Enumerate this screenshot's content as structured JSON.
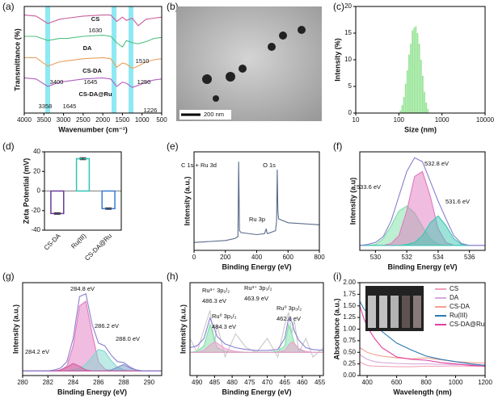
{
  "chart_data": [
    {
      "type": "line",
      "panel_label": "(a)",
      "xlabel": "Wavenumber (cm⁻¹)",
      "ylabel": "Transmittance (%)",
      "xlim": [
        4000,
        500
      ],
      "xticks": [
        4000,
        3500,
        3000,
        2500,
        2000,
        1500,
        1000,
        500
      ],
      "ylim": [
        0,
        100
      ],
      "x": [
        4000,
        3700,
        3400,
        3100,
        2900,
        2500,
        2000,
        1800,
        1645,
        1500,
        1400,
        1250,
        1100,
        900,
        700,
        500
      ],
      "series": [
        {
          "color": "#c8609a",
          "values": [
            92,
            91,
            84,
            88,
            89,
            91,
            92,
            92,
            86,
            90,
            87,
            89,
            82,
            88,
            89,
            90
          ]
        },
        {
          "color": "#50c080",
          "values": [
            72,
            72,
            68,
            70,
            70,
            72,
            73,
            72,
            66,
            62,
            68,
            66,
            65,
            67,
            70,
            71
          ]
        },
        {
          "color": "#e8a060",
          "values": [
            52,
            52,
            44,
            48,
            49,
            51,
            52,
            51,
            43,
            47,
            46,
            42,
            44,
            48,
            50,
            51
          ]
        },
        {
          "color": "#b060c0",
          "values": [
            33,
            32,
            25,
            29,
            30,
            32,
            33,
            32,
            25,
            29,
            28,
            24,
            26,
            29,
            31,
            32
          ]
        }
      ],
      "annotations": [
        "CS",
        "1630",
        "DA",
        "1510",
        "CS-DA",
        "3400",
        "1645",
        "1250",
        "CS-DA@Ru",
        "3358",
        "1645",
        "1226"
      ]
    },
    {
      "type": "image",
      "panel_label": "(b)",
      "scale_bar": "200 nm"
    },
    {
      "type": "histogram",
      "panel_label": "(c)",
      "xlabel": "Size (nm)",
      "ylabel": "Intensity (%)",
      "color": "#95e495",
      "xlog": true,
      "xlim": [
        10,
        10000
      ],
      "xticks": [
        10,
        100,
        1000,
        10000
      ],
      "ylim": [
        0,
        20
      ],
      "yticks": [
        0,
        5,
        10,
        15,
        20
      ],
      "bins": [
        105,
        115,
        126,
        138,
        151,
        166,
        182,
        199,
        218,
        239,
        262,
        287,
        315,
        345,
        378,
        414,
        454,
        497
      ],
      "values": [
        0.5,
        1.5,
        3,
        5.5,
        8,
        11,
        13,
        15.5,
        16,
        16.3,
        15,
        13,
        10,
        7,
        4,
        2,
        0.8
      ]
    },
    {
      "type": "bar",
      "panel_label": "(d)",
      "ylabel": "Zeta Potential (mV)",
      "categories": [
        "CS-DA",
        "Ru(III)",
        "CS-DA@Ru"
      ],
      "values": [
        -23,
        33,
        -18
      ],
      "errors": [
        0.8,
        1,
        0.8
      ],
      "colors": [
        "#6a3d9a",
        "#2ec4b6",
        "#3a7bd5"
      ],
      "ylim": [
        -40,
        40
      ],
      "yticks": [
        -40,
        -20,
        0,
        20,
        40
      ]
    },
    {
      "type": "line",
      "panel_label": "(e)",
      "xlabel": "Binding Energy (eV)",
      "ylabel": "Intensity (a.u.)",
      "xlim": [
        0,
        800
      ],
      "xticks": [
        0,
        200,
        400,
        600,
        800
      ],
      "ylim": [
        0,
        100
      ],
      "x": [
        0,
        100,
        200,
        260,
        280,
        285,
        290,
        300,
        400,
        450,
        461,
        465,
        470,
        520,
        527,
        531,
        535,
        540,
        600,
        700,
        800
      ],
      "series": [
        {
          "color": "#5a6b8c",
          "values": [
            8,
            9,
            10,
            12,
            14,
            90,
            20,
            18,
            16,
            17,
            22,
            18,
            17,
            20,
            30,
            82,
            40,
            32,
            28,
            27,
            26
          ]
        }
      ],
      "annotations": [
        "C 1s + Ru 3d",
        "O 1s",
        "Ru 3p"
      ]
    },
    {
      "type": "line",
      "panel_label": "(f)",
      "xlabel": "Binding Energy (eV)",
      "ylabel": "Intensity (a.u)",
      "xlim": [
        529,
        537
      ],
      "xticks": [
        530,
        532,
        534,
        536
      ],
      "ylim": [
        0,
        100
      ],
      "x": [
        529,
        529.5,
        530,
        530.5,
        531,
        531.5,
        532,
        532.5,
        533,
        533.5,
        534,
        534.5,
        535,
        535.5,
        536,
        536.5,
        537
      ],
      "series": [
        {
          "color": "#7be0a8",
          "fill": true,
          "values": [
            5,
            5,
            6,
            12,
            25,
            40,
            45,
            38,
            24,
            12,
            6,
            5,
            5,
            5,
            5,
            5,
            5
          ]
        },
        {
          "color": "#e27ac0",
          "fill": true,
          "values": [
            5,
            5,
            5,
            5,
            7,
            15,
            40,
            75,
            80,
            55,
            22,
            8,
            5,
            5,
            5,
            5,
            5
          ]
        },
        {
          "color": "#3cc8b4",
          "fill": true,
          "values": [
            5,
            5,
            5,
            5,
            5,
            5,
            6,
            8,
            15,
            28,
            35,
            25,
            12,
            6,
            5,
            5,
            5
          ]
        },
        {
          "color": "#8a7fd0",
          "values": [
            5,
            6,
            8,
            14,
            30,
            55,
            80,
            94,
            90,
            70,
            50,
            32,
            15,
            7,
            5,
            5,
            5
          ]
        }
      ],
      "annotations": [
        "533.6 eV",
        "532.8 eV",
        "531.6 eV"
      ]
    },
    {
      "type": "line",
      "panel_label": "(g)",
      "xlabel": "Binding Energy (eV)",
      "ylabel": "Intensity (a.u.)",
      "xlim": [
        280,
        291
      ],
      "xticks": [
        280,
        282,
        284,
        286,
        288,
        290
      ],
      "ylim": [
        0,
        100
      ],
      "x": [
        280,
        280.5,
        281,
        281.5,
        282,
        282.5,
        283,
        283.5,
        284,
        284.5,
        285,
        285.5,
        286,
        286.5,
        287,
        287.5,
        288,
        288.5,
        289,
        289.5,
        290,
        290.5,
        291
      ],
      "series": [
        {
          "color": "#e27ac0",
          "fill": true,
          "values": [
            5,
            5,
            5,
            5,
            5,
            5,
            6,
            10,
            32,
            75,
            80,
            45,
            15,
            7,
            5,
            5,
            5,
            5,
            5,
            5,
            5,
            5,
            5
          ]
        },
        {
          "color": "#7fd8d0",
          "fill": true,
          "values": [
            5,
            5,
            5,
            5,
            5,
            5,
            5,
            5,
            6,
            8,
            12,
            20,
            28,
            26,
            16,
            9,
            6,
            5,
            5,
            5,
            5,
            5,
            5
          ]
        },
        {
          "color": "#7a90c8",
          "fill": true,
          "values": [
            5,
            5,
            5,
            5,
            5,
            5,
            5,
            5,
            5,
            5,
            5,
            5,
            5,
            5,
            6,
            9,
            12,
            8,
            6,
            5,
            5,
            5,
            5
          ]
        },
        {
          "color": "#d060a0",
          "fill": true,
          "values": [
            5,
            5,
            5,
            5,
            5,
            5,
            6,
            9,
            13,
            10,
            6,
            5,
            5,
            5,
            5,
            5,
            5,
            5,
            5,
            5,
            5,
            5,
            5
          ]
        },
        {
          "color": "#8a7fd0",
          "values": [
            5,
            5,
            5,
            5,
            5,
            6,
            8,
            15,
            40,
            85,
            88,
            55,
            35,
            32,
            22,
            15,
            14,
            9,
            6,
            5,
            5,
            5,
            5
          ]
        }
      ],
      "annotations": [
        "284.8 eV",
        "286.2 eV",
        "288.0 eV",
        "284.2 eV"
      ]
    },
    {
      "type": "line",
      "panel_label": "(h)",
      "xlabel": "Binding Energy (eV)",
      "ylabel": "Intensity (a.u.)",
      "xlim": [
        492,
        454
      ],
      "xticks": [
        490,
        485,
        480,
        475,
        470,
        465,
        460,
        455
      ],
      "ylim": [
        0,
        100
      ],
      "x": [
        492,
        490,
        488,
        486.3,
        485,
        484.3,
        482,
        479,
        476,
        473,
        470,
        467,
        465,
        463.9,
        463,
        462.3,
        461,
        459,
        457,
        454
      ],
      "series": [
        {
          "color": "#c8c8c8",
          "values": [
            40,
            25,
            50,
            70,
            35,
            55,
            20,
            45,
            30,
            25,
            40,
            20,
            55,
            68,
            45,
            60,
            25,
            40,
            20,
            30
          ]
        },
        {
          "color": "#7be0a8",
          "fill": true,
          "values": [
            25,
            26,
            32,
            55,
            40,
            30,
            26,
            25,
            25,
            25,
            25,
            25,
            25,
            25,
            25,
            25,
            25,
            25,
            25,
            25
          ]
        },
        {
          "color": "#f0a0d0",
          "fill": true,
          "values": [
            25,
            25,
            27,
            33,
            36,
            35,
            29,
            26,
            25,
            25,
            25,
            25,
            25,
            25,
            25,
            25,
            25,
            25,
            25,
            25
          ]
        },
        {
          "color": "#7be0a8",
          "fill": true,
          "values": [
            25,
            25,
            25,
            25,
            25,
            25,
            25,
            25,
            25,
            25,
            25,
            26,
            32,
            55,
            45,
            35,
            28,
            25,
            25,
            25
          ]
        },
        {
          "color": "#f0a0d0",
          "fill": true,
          "values": [
            25,
            25,
            25,
            25,
            25,
            25,
            25,
            25,
            25,
            25,
            25,
            25,
            27,
            33,
            36,
            35,
            29,
            26,
            25,
            25
          ]
        },
        {
          "color": "#8a7fd0",
          "values": [
            30,
            32,
            40,
            62,
            50,
            42,
            34,
            30,
            28,
            27,
            27,
            28,
            40,
            62,
            58,
            48,
            38,
            30,
            28,
            27
          ]
        }
      ],
      "annotations": [
        "Ru³⁺ 3p₁/₂",
        "486.3 eV",
        "Ru⁰ 3p₁/₂",
        "484.3 eV",
        "Ru³⁺ 3p₃/₂",
        "463.9 eV",
        "Ru⁰ 3p₃/₂",
        "462.3 eV"
      ]
    },
    {
      "type": "line",
      "panel_label": "(i)",
      "xlabel": "Wavelength (nm)",
      "ylabel": "Absorbance (a.u.)",
      "xlim": [
        350,
        1200
      ],
      "xticks": [
        400,
        600,
        800,
        1000,
        1200
      ],
      "ylim": [
        0,
        2
      ],
      "yticks": [
        {
          "value": 0,
          "label": "0.00"
        },
        {
          "value": 0.25,
          "label": "0.25"
        },
        {
          "value": 0.5,
          "label": "0.50"
        },
        {
          "value": 0.75,
          "label": "0.75"
        },
        {
          "value": 1,
          "label": "1.00"
        },
        {
          "value": 1.25,
          "label": "1.25"
        },
        {
          "value": 1.5,
          "label": "1.50"
        },
        {
          "value": 1.75,
          "label": "1.75"
        },
        {
          "value": 2,
          "label": "2.00"
        }
      ],
      "legend": "top-right",
      "x": [
        350,
        375,
        400,
        450,
        500,
        600,
        700,
        800,
        900,
        1000,
        1100,
        1200
      ],
      "series": [
        {
          "name": "CS",
          "color": "#f0a0b8",
          "values": [
            0.3,
            0.25,
            0.22,
            0.2,
            0.2,
            0.19,
            0.19,
            0.2,
            0.2,
            0.21,
            0.2,
            0.2
          ]
        },
        {
          "name": "DA",
          "color": "#d8a8e0",
          "values": [
            0.45,
            0.4,
            0.35,
            0.3,
            0.28,
            0.26,
            0.25,
            0.25,
            0.24,
            0.24,
            0.23,
            0.23
          ]
        },
        {
          "name": "CS-DA",
          "color": "#f4a090",
          "values": [
            0.6,
            0.55,
            0.5,
            0.45,
            0.42,
            0.38,
            0.36,
            0.38,
            0.34,
            0.3,
            0.28,
            0.27
          ]
        },
        {
          "name": "Ru(III)",
          "color": "#2a7ab0",
          "values": [
            1.6,
            1.45,
            1.35,
            1.15,
            0.95,
            0.7,
            0.55,
            0.42,
            0.35,
            0.3,
            0.25,
            0.22
          ]
        },
        {
          "name": "CS-DA@Ru",
          "color": "#e040a0",
          "values": [
            1.5,
            1.25,
            1.05,
            0.8,
            0.6,
            0.4,
            0.35,
            0.33,
            0.28,
            0.25,
            0.22,
            0.2
          ]
        }
      ]
    }
  ]
}
